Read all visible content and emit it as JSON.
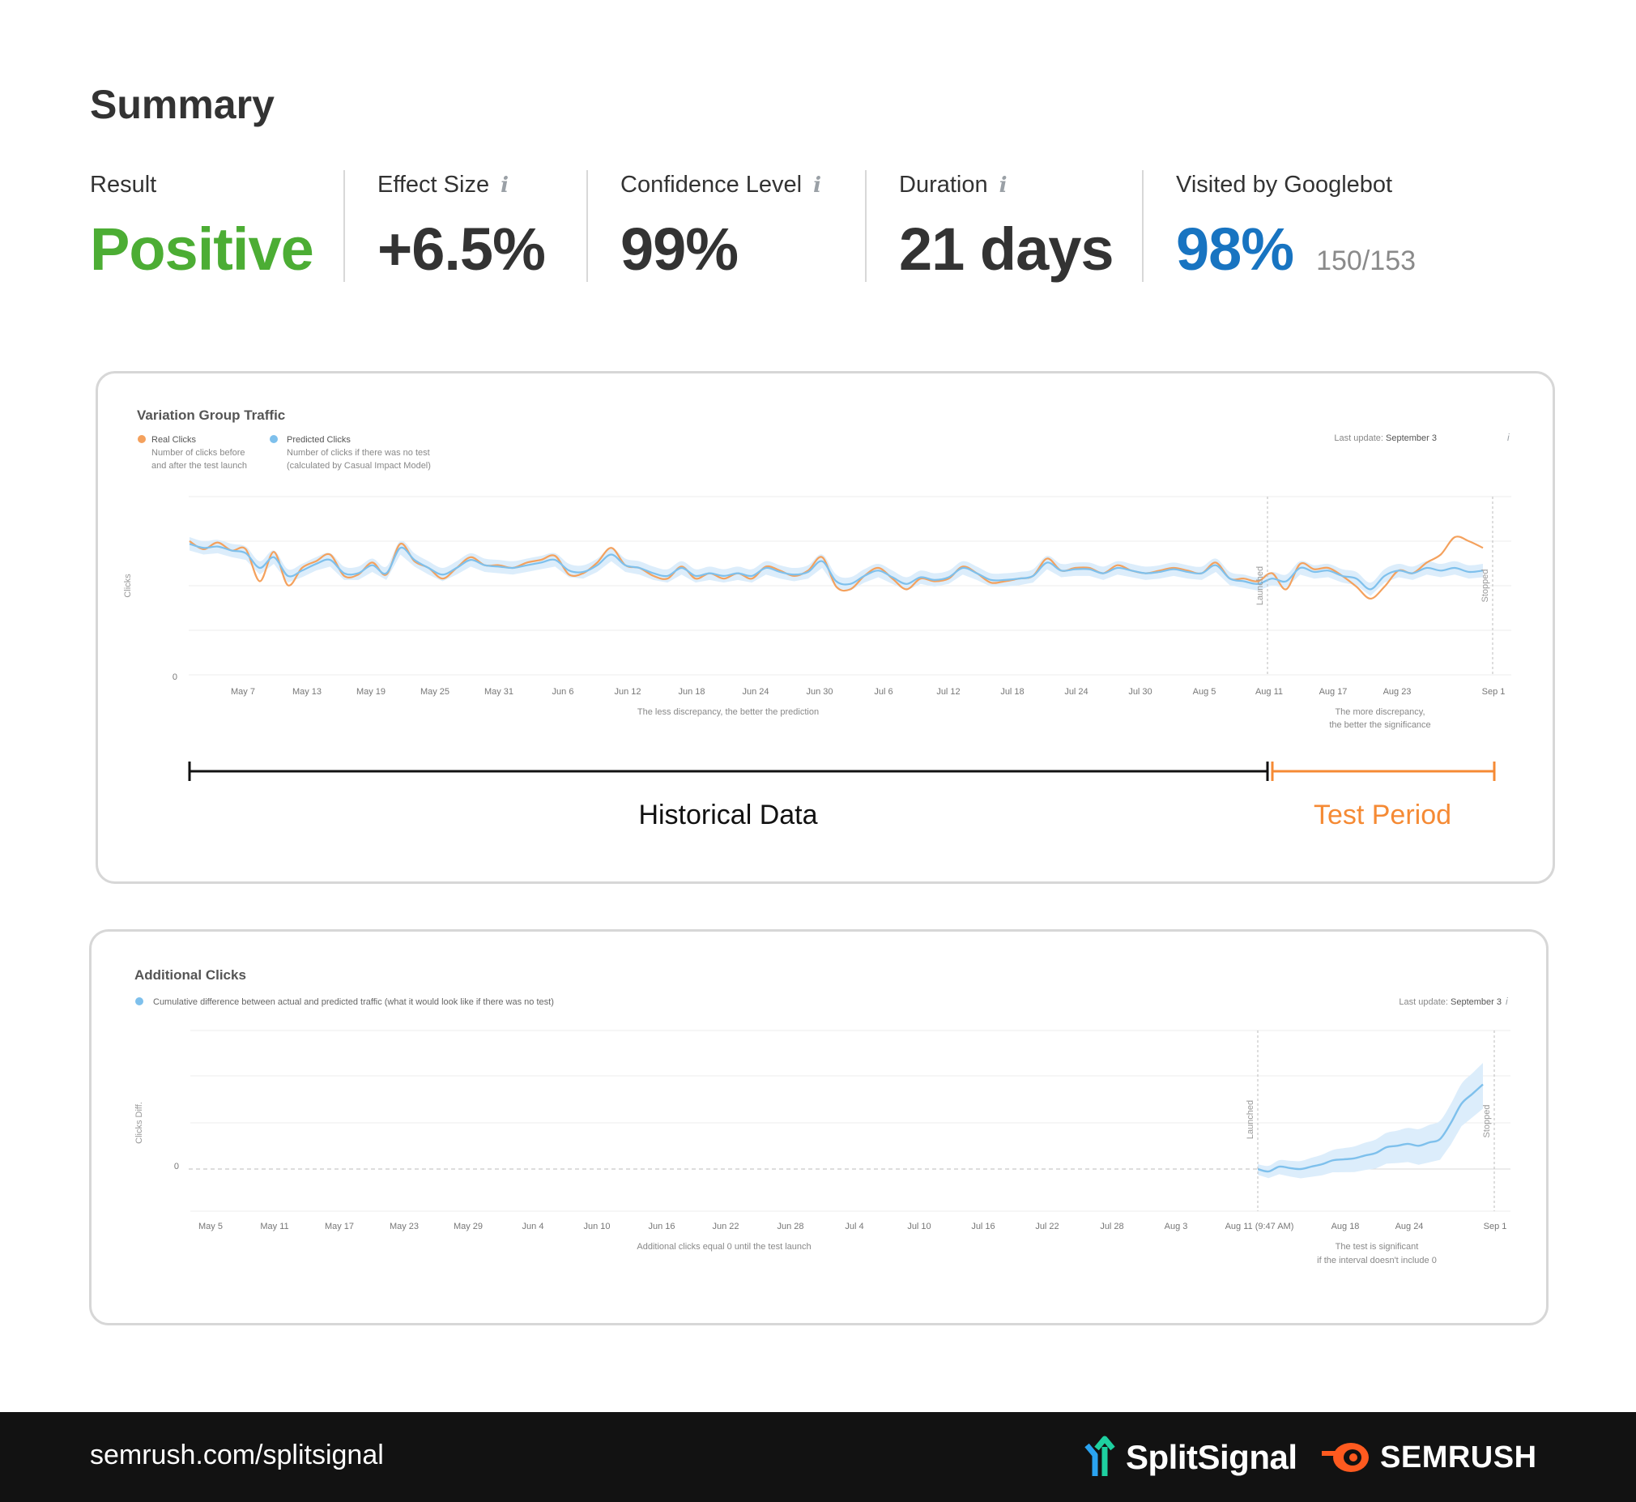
{
  "summary": {
    "title": "Summary",
    "result": {
      "label": "Result",
      "value": "Positive",
      "color": "#4cad34"
    },
    "effect_size": {
      "label": "Effect Size",
      "value": "+6.5%",
      "info_icon": "info-icon"
    },
    "confidence": {
      "label": "Confidence Level",
      "value": "99%",
      "info_icon": "info-icon"
    },
    "duration": {
      "label": "Duration",
      "value": "21 days",
      "info_icon": "info-icon"
    },
    "googlebot": {
      "label": "Visited by Googlebot",
      "value": "98%",
      "sub": "150/153",
      "color": "#1874c1"
    }
  },
  "traffic_chart": {
    "title": "Variation Group Traffic",
    "legend": [
      {
        "name": "Real Clicks",
        "desc1": "Number of clicks before",
        "desc2": "and after the test launch",
        "color": "#f4a15d"
      },
      {
        "name": "Predicted Clicks",
        "desc1": "Number of clicks if there was no test",
        "desc2": "(calculated by Casual Impact Model)",
        "color": "#7ec0ec"
      }
    ],
    "last_update_label": "Last update:",
    "last_update_value": "September 3",
    "ylabel": "Clicks",
    "zero_label": "0",
    "launched_label": "Launched",
    "stopped_label": "Stopped",
    "x_ticks": [
      "May 7",
      "May 13",
      "May 19",
      "May 25",
      "May 31",
      "Jun 6",
      "Jun 12",
      "Jun 18",
      "Jun 24",
      "Jun 30",
      "Jul 6",
      "Jul 12",
      "Jul 18",
      "Jul 24",
      "Jul 30",
      "Aug 5",
      "Aug 11",
      "Aug 17",
      "Aug 23",
      "Sep 1"
    ],
    "note_left": "The less discrepancy, the better the prediction",
    "note_right_1": "The more discrepancy,",
    "note_right_2": "the better the significance",
    "historical_label": "Historical Data",
    "test_period_label": "Test Period",
    "test_color": "#f58a34"
  },
  "clicks_chart": {
    "title": "Additional Clicks",
    "legend": "Cumulative difference between actual and predicted traffic (what it would look like if there was no test)",
    "legend_color": "#7ec0ec",
    "last_update_label": "Last update:",
    "last_update_value": "September 3",
    "ylabel": "Clicks Diff.",
    "zero_label": "0",
    "launched_label": "Launched",
    "stopped_label": "Stopped",
    "x_ticks": [
      "May 5",
      "May 11",
      "May 17",
      "May 23",
      "May 29",
      "Jun 4",
      "Jun 10",
      "Jun 16",
      "Jun 22",
      "Jun 28",
      "Jul 4",
      "Jul 10",
      "Jul 16",
      "Jul 22",
      "Jul 28",
      "Aug 3",
      "Aug 11 (9:47 AM)",
      "Aug 18",
      "Aug 24",
      "Sep 1"
    ],
    "note_left": "Additional clicks equal 0 until the test launch",
    "note_right_1": "The test is significant",
    "note_right_2": "if the interval doesn't include 0"
  },
  "chart_data": [
    {
      "type": "line",
      "title": "Variation Group Traffic",
      "ylabel": "Clicks",
      "x_range": [
        "May 3",
        "Sep 1"
      ],
      "series": [
        {
          "name": "Real Clicks",
          "values": [
            1.0,
            0.94,
            0.99,
            0.93,
            0.94,
            0.7,
            0.92,
            0.67,
            0.8,
            0.85,
            0.9,
            0.74,
            0.75,
            0.84,
            0.75,
            0.98,
            0.85,
            0.8,
            0.72,
            0.8,
            0.88,
            0.82,
            0.82,
            0.8,
            0.84,
            0.86,
            0.89,
            0.75,
            0.76,
            0.84,
            0.95,
            0.82,
            0.8,
            0.74,
            0.72,
            0.81,
            0.72,
            0.76,
            0.72,
            0.76,
            0.72,
            0.81,
            0.78,
            0.74,
            0.78,
            0.88,
            0.66,
            0.64,
            0.74,
            0.8,
            0.72,
            0.64,
            0.72,
            0.7,
            0.72,
            0.81,
            0.76,
            0.69,
            0.7,
            0.72,
            0.74,
            0.87,
            0.78,
            0.8,
            0.8,
            0.76,
            0.82,
            0.78,
            0.76,
            0.78,
            0.8,
            0.78,
            0.76,
            0.84,
            0.72,
            0.72,
            0.7,
            0.76,
            0.64,
            0.83,
            0.79,
            0.8,
            0.74,
            0.66,
            0.57,
            0.66,
            0.78,
            0.76,
            0.84,
            0.9,
            1.03,
            1.0,
            0.95
          ]
        },
        {
          "name": "Predicted Clicks",
          "values": [
            0.98,
            0.95,
            0.96,
            0.93,
            0.91,
            0.8,
            0.88,
            0.74,
            0.78,
            0.83,
            0.86,
            0.76,
            0.76,
            0.82,
            0.76,
            0.95,
            0.86,
            0.8,
            0.75,
            0.8,
            0.86,
            0.82,
            0.81,
            0.8,
            0.82,
            0.84,
            0.86,
            0.78,
            0.77,
            0.82,
            0.9,
            0.82,
            0.8,
            0.76,
            0.74,
            0.8,
            0.74,
            0.76,
            0.74,
            0.76,
            0.74,
            0.8,
            0.77,
            0.75,
            0.77,
            0.85,
            0.7,
            0.68,
            0.74,
            0.78,
            0.73,
            0.68,
            0.73,
            0.71,
            0.73,
            0.8,
            0.76,
            0.71,
            0.71,
            0.72,
            0.74,
            0.84,
            0.78,
            0.79,
            0.79,
            0.76,
            0.8,
            0.78,
            0.76,
            0.77,
            0.79,
            0.77,
            0.76,
            0.82,
            0.72,
            0.7,
            0.68,
            0.72,
            0.7,
            0.8,
            0.77,
            0.78,
            0.74,
            0.72,
            0.64,
            0.74,
            0.78,
            0.76,
            0.8,
            0.78,
            0.8,
            0.77,
            0.78
          ]
        }
      ]
    },
    {
      "type": "area",
      "title": "Additional Clicks",
      "ylabel": "Clicks Diff.",
      "x_range": [
        "May 3",
        "Sep 1"
      ],
      "series": [
        {
          "name": "Cumulative difference between actual and predicted traffic (what it would look like if there was no test)",
          "x_days_from_launch": [
            0,
            1,
            2,
            3,
            4,
            5,
            6,
            7,
            8,
            9,
            10,
            11,
            12,
            13,
            14,
            15,
            16,
            17,
            18,
            19,
            20,
            21
          ],
          "values": [
            0,
            -0.05,
            0.05,
            0.02,
            0.0,
            0.05,
            0.1,
            0.18,
            0.2,
            0.22,
            0.28,
            0.33,
            0.45,
            0.48,
            0.52,
            0.48,
            0.55,
            0.62,
            0.95,
            1.35,
            1.55,
            1.75
          ]
        }
      ]
    }
  ]
}
